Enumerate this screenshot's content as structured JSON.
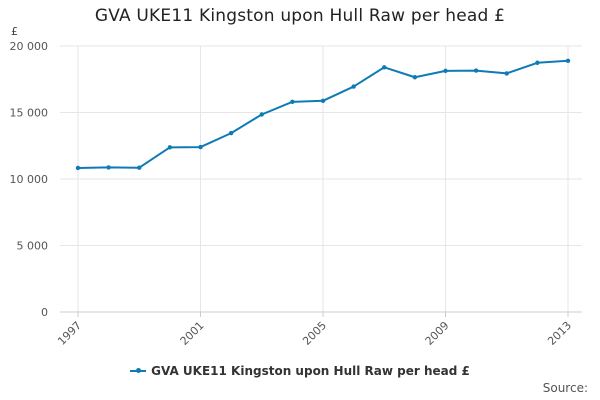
{
  "chart_data": {
    "type": "line",
    "title": "GVA UKE11 Kingston upon Hull Raw per head £",
    "ylabel": "£",
    "xlabel": "",
    "x": [
      1997,
      1998,
      1999,
      2000,
      2001,
      2002,
      2003,
      2004,
      2005,
      2006,
      2007,
      2008,
      2009,
      2010,
      2011,
      2012,
      2013
    ],
    "x_tick_labels": [
      "1997",
      "2001",
      "2005",
      "2009",
      "2013"
    ],
    "y_tick_labels": [
      "0",
      "5 000",
      "10 000",
      "15 000",
      "20 000"
    ],
    "y_ticks": [
      0,
      5000,
      10000,
      15000,
      20000
    ],
    "ylim": [
      0,
      20000
    ],
    "xlim": [
      1997,
      2013
    ],
    "grid": true,
    "legend_position": "bottom",
    "series": [
      {
        "name": "GVA UKE11 Kingston upon Hull Raw per head £",
        "color": "#0f7bb6",
        "values": [
          10830,
          10870,
          10850,
          12380,
          12400,
          13450,
          14850,
          15800,
          15880,
          16950,
          18400,
          17650,
          18130,
          18150,
          17940,
          18740,
          18890
        ]
      }
    ]
  },
  "footer": {
    "source_label": "Source:"
  }
}
